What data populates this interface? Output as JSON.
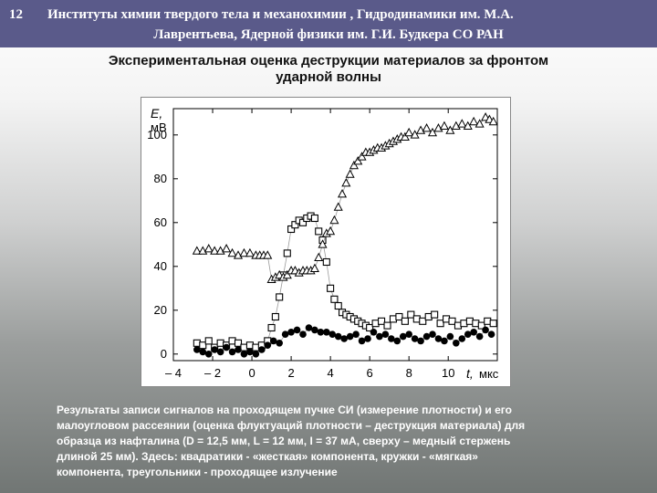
{
  "header": {
    "slide_number": "12",
    "line1": "Институты химии твердого тела и механохимии , Гидродинамики им. М.А.",
    "line2": "Лаврентьева, Ядерной физики им. Г.И. Будкера  СО РАН"
  },
  "title_lines": [
    "Экспериментальная оценка деструкции материалов за фронтом",
    "ударной волны"
  ],
  "caption_lines": [
    "Результаты записи сигналов на проходящем пучке СИ  (измерение плотности)  и  его",
    "малоугловом рассеянии (оценка флуктуаций плотности – деструкция материала) для",
    "образца  из нафталина (D = 12,5 мм,  L = 12 мм,  I = 37 мА,   сверху – медный стержень",
    "длиной 25 мм).     Здесь:  квадратики  -  «жесткая»  компонента,   кружки  -  «мягкая»",
    "компонента,  треугольники - проходящее излучение"
  ],
  "chart_data": {
    "type": "scatter",
    "ylabel": "E,",
    "yunit": "мВ",
    "xlabel": "t,",
    "xunit": "мкс",
    "xlim": [
      -4,
      12.5
    ],
    "ylim": [
      -3,
      112
    ],
    "x_ticks": [
      -4,
      -2,
      0,
      2,
      4,
      6,
      8,
      10
    ],
    "x_tick_labels": [
      "– 4",
      "– 2",
      "0",
      "2",
      "4",
      "6",
      "8",
      "10"
    ],
    "y_ticks": [
      0,
      20,
      40,
      60,
      80,
      100
    ],
    "y_tick_labels": [
      "0",
      "20",
      "40",
      "60",
      "80",
      "100"
    ],
    "grid": false,
    "series": [
      {
        "marker": "square",
        "x": [
          -2.8,
          -2.5,
          -2.2,
          -1.9,
          -1.6,
          -1.3,
          -1.0,
          -0.7,
          -0.4,
          -0.1,
          0.2,
          0.5,
          0.8,
          1.0,
          1.2,
          1.4,
          1.6,
          1.8,
          2.0,
          2.2,
          2.4,
          2.6,
          2.8,
          3.0,
          3.2,
          3.4,
          3.6,
          3.8,
          4.0,
          4.2,
          4.4,
          4.6,
          4.8,
          5.0,
          5.2,
          5.4,
          5.6,
          5.8,
          6.0,
          6.3,
          6.6,
          6.9,
          7.2,
          7.5,
          7.8,
          8.1,
          8.4,
          8.7,
          9.0,
          9.3,
          9.6,
          9.9,
          10.2,
          10.5,
          10.8,
          11.1,
          11.4,
          11.7,
          12.0,
          12.3
        ],
        "y": [
          5,
          4,
          6,
          3,
          5,
          4,
          6,
          5,
          3,
          4,
          3,
          4,
          6,
          12,
          17,
          26,
          36,
          46,
          57,
          59,
          61,
          60,
          62,
          63,
          62,
          56,
          52,
          42,
          30,
          25,
          22,
          19,
          18,
          17,
          16,
          15,
          14,
          13,
          12,
          14,
          15,
          13,
          16,
          17,
          15,
          18,
          16,
          15,
          17,
          18,
          14,
          16,
          15,
          13,
          14,
          15,
          14,
          13,
          15,
          14
        ]
      },
      {
        "marker": "circle",
        "x": [
          -2.8,
          -2.5,
          -2.2,
          -1.9,
          -1.6,
          -1.3,
          -1.0,
          -0.7,
          -0.4,
          -0.1,
          0.2,
          0.5,
          0.8,
          1.1,
          1.4,
          1.7,
          2.0,
          2.3,
          2.6,
          2.9,
          3.2,
          3.5,
          3.8,
          4.1,
          4.4,
          4.7,
          5.0,
          5.3,
          5.6,
          5.9,
          6.2,
          6.5,
          6.8,
          7.1,
          7.4,
          7.7,
          8.0,
          8.3,
          8.6,
          8.9,
          9.2,
          9.5,
          9.8,
          10.1,
          10.4,
          10.7,
          11.0,
          11.3,
          11.6,
          11.9,
          12.2
        ],
        "y": [
          2,
          1,
          0,
          2,
          1,
          3,
          1,
          2,
          0,
          1,
          0,
          2,
          4,
          6,
          5,
          9,
          10,
          11,
          9,
          12,
          11,
          10,
          10,
          9,
          8,
          7,
          8,
          9,
          6,
          7,
          10,
          8,
          9,
          7,
          6,
          8,
          9,
          7,
          6,
          8,
          9,
          7,
          6,
          8,
          5,
          7,
          9,
          10,
          8,
          11,
          9
        ]
      },
      {
        "marker": "triangle",
        "x": [
          -2.8,
          -2.5,
          -2.2,
          -1.9,
          -1.6,
          -1.3,
          -1.0,
          -0.7,
          -0.4,
          -0.1,
          0.2,
          0.4,
          0.6,
          0.8,
          1.0,
          1.2,
          1.4,
          1.6,
          1.8,
          2.0,
          2.2,
          2.4,
          2.6,
          2.8,
          3.0,
          3.2,
          3.4,
          3.6,
          3.8,
          4.0,
          4.2,
          4.4,
          4.6,
          4.8,
          5.0,
          5.2,
          5.4,
          5.6,
          5.8,
          6.0,
          6.2,
          6.4,
          6.6,
          6.8,
          7.0,
          7.2,
          7.4,
          7.6,
          7.8,
          8.0,
          8.3,
          8.6,
          8.9,
          9.2,
          9.5,
          9.8,
          10.1,
          10.4,
          10.7,
          11.0,
          11.3,
          11.6,
          11.9,
          12.1,
          12.3
        ],
        "y": [
          47,
          47,
          48,
          47,
          47,
          48,
          46,
          45,
          46,
          46,
          45,
          45,
          45,
          45,
          34,
          35,
          36,
          35,
          36,
          38,
          38,
          37,
          38,
          38,
          38,
          39,
          44,
          50,
          55,
          56,
          61,
          67,
          73,
          78,
          82,
          86,
          88,
          90,
          92,
          92,
          93,
          94,
          94,
          95,
          96,
          97,
          98,
          99,
          99,
          101,
          100,
          102,
          103,
          101,
          103,
          104,
          102,
          104,
          105,
          104,
          106,
          105,
          108,
          107,
          106
        ]
      }
    ]
  }
}
